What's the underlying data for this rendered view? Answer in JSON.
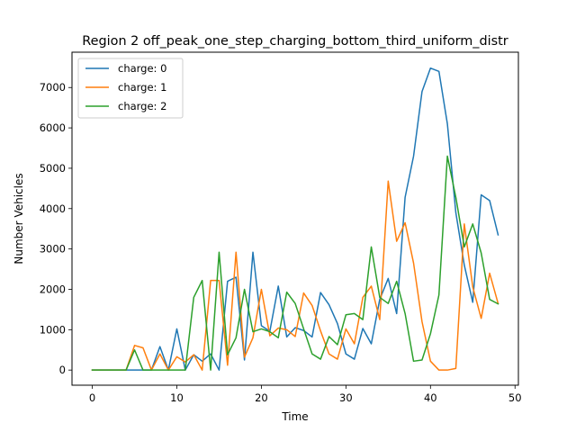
{
  "chart_data": {
    "type": "line",
    "title": "Region 2 off_peak_one_step_charging_bottom_third_uniform_distr",
    "xlabel": "Time",
    "ylabel": "Number Vehicles",
    "xlim": [
      -2.4,
      50.4
    ],
    "ylim": [
      -375,
      7875
    ],
    "xticks": [
      0,
      10,
      20,
      30,
      40,
      50
    ],
    "yticks": [
      0,
      1000,
      2000,
      3000,
      4000,
      5000,
      6000,
      7000
    ],
    "grid": false,
    "legend": "top-left",
    "x": [
      0,
      1,
      2,
      3,
      4,
      5,
      6,
      7,
      8,
      9,
      10,
      11,
      12,
      13,
      14,
      15,
      16,
      17,
      18,
      19,
      20,
      21,
      22,
      23,
      24,
      25,
      26,
      27,
      28,
      29,
      30,
      31,
      32,
      33,
      34,
      35,
      36,
      37,
      38,
      39,
      40,
      41,
      42,
      43,
      44,
      45,
      46,
      47,
      48
    ],
    "series": [
      {
        "name": "charge: 0",
        "color": "#1f77b4",
        "values": [
          0,
          0,
          0,
          0,
          0,
          0,
          0,
          0,
          580,
          0,
          1020,
          0,
          380,
          220,
          400,
          0,
          2200,
          2300,
          250,
          2920,
          1100,
          960,
          2080,
          820,
          1050,
          980,
          820,
          1920,
          1620,
          1150,
          400,
          270,
          1030,
          650,
          1750,
          2270,
          1400,
          4280,
          5300,
          6900,
          7480,
          7400,
          6100,
          3900,
          2600,
          1680,
          4340,
          4200,
          3350
        ]
      },
      {
        "name": "charge: 1",
        "color": "#ff7f0e",
        "values": [
          0,
          0,
          0,
          0,
          0,
          610,
          550,
          0,
          400,
          0,
          330,
          200,
          380,
          0,
          2220,
          2220,
          120,
          2920,
          320,
          800,
          2000,
          850,
          1040,
          1000,
          830,
          1910,
          1600,
          970,
          400,
          270,
          1020,
          650,
          1800,
          2080,
          1250,
          4680,
          3190,
          3650,
          2650,
          1200,
          220,
          0,
          0,
          40,
          3620,
          2060,
          1280,
          2400,
          1650
        ]
      },
      {
        "name": "charge: 2",
        "color": "#2ca02c",
        "values": [
          0,
          0,
          0,
          0,
          0,
          500,
          0,
          0,
          0,
          0,
          0,
          0,
          1800,
          2220,
          0,
          2920,
          380,
          800,
          2000,
          950,
          1020,
          950,
          800,
          1930,
          1650,
          1020,
          400,
          270,
          830,
          630,
          1370,
          1400,
          1250,
          3050,
          1800,
          1650,
          2200,
          1400,
          220,
          250,
          900,
          1860,
          5300,
          4280,
          3050,
          3620,
          2900,
          1750,
          1640
        ]
      }
    ]
  }
}
